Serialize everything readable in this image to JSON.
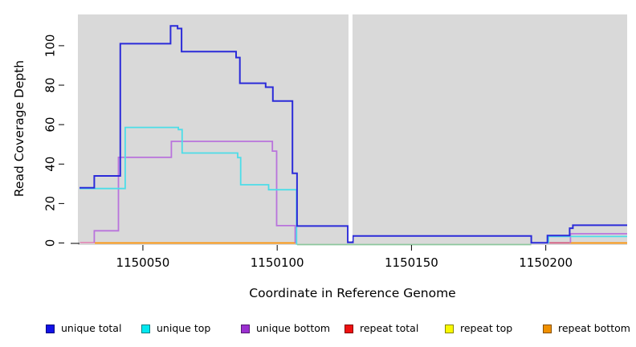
{
  "figure": {
    "bg": "#ffffff",
    "plot_bg": "#d9d9d9"
  },
  "chart_data": {
    "type": "line",
    "step": "after",
    "title": "",
    "xlabel": "Coordinate in Reference Genome",
    "ylabel": "Read Coverage Depth",
    "xlim": [
      1150025.8,
      1150230.3
    ],
    "ylim": [
      0,
      116
    ],
    "xticks": [
      1150050,
      1150100,
      1150150,
      1150200
    ],
    "yticks": [
      0,
      20,
      40,
      60,
      80,
      100
    ],
    "grid": false,
    "legend_position": "bottom",
    "masked_region": {
      "x0": 1150126.55,
      "x1": 1150128.05,
      "color": "#ffffff"
    },
    "series": [
      {
        "name": "unique bottom",
        "color": "#b973dc",
        "width": 1.8,
        "paths": [
          [
            [
              1150031.9,
              0.2
            ],
            [
              1150031.9,
              6.2
            ],
            [
              1150040.9,
              43.4
            ],
            [
              1150060.6,
              51.5
            ],
            [
              1150098.2,
              46.6
            ],
            [
              1150099.8,
              8.8
            ],
            [
              1150106.7,
              0
            ]
          ],
          [
            [
              1150209.2,
              0
            ],
            [
              1150209.2,
              4.7
            ],
            [
              1150230.3,
              4.7
            ]
          ]
        ]
      },
      {
        "name": "unique top",
        "color": "#4cdde8",
        "width": 1.8,
        "paths": [
          [
            [
              1150026.4,
              27.6
            ],
            [
              1150043.4,
              58.6
            ],
            [
              1150063.2,
              57.5
            ],
            [
              1150064.6,
              45.6
            ],
            [
              1150085.3,
              43.3
            ],
            [
              1150086.4,
              29.5
            ],
            [
              1150096.8,
              27
            ],
            [
              1150107.2,
              27
            ],
            [
              1150107.2,
              -0.8
            ]
          ],
          [
            [
              1150200.9,
              0
            ],
            [
              1150201.0,
              3.3
            ],
            [
              1150230.3,
              3.3
            ]
          ]
        ]
      },
      {
        "name": "unique total",
        "color": "#2b2bd9",
        "width": 2,
        "paths": [
          [
            [
              1150026.4,
              28
            ],
            [
              1150031.9,
              34
            ],
            [
              1150041.6,
              101
            ],
            [
              1150060.3,
              110
            ],
            [
              1150062.9,
              108.7
            ],
            [
              1150064.4,
              97
            ],
            [
              1150084.7,
              94
            ],
            [
              1150086.1,
              81
            ],
            [
              1150095.7,
              79
            ],
            [
              1150098.4,
              72
            ],
            [
              1150105.7,
              35.3
            ],
            [
              1150107.4,
              8.6
            ],
            [
              1150126.3,
              0.3
            ],
            [
              1150128.2,
              3.6
            ],
            [
              1150194.6,
              0.1
            ],
            [
              1150200.6,
              3.8
            ],
            [
              1150208.9,
              7.5
            ],
            [
              1150210.1,
              9
            ],
            [
              1150230.3,
              9
            ]
          ]
        ]
      }
    ],
    "zero_segments": [
      {
        "name": "baseline-pink",
        "color": "#e28cb8",
        "x0": 1150026.6,
        "x1": 1150032.1,
        "v": 0.2
      },
      {
        "name": "baseline-orange-left",
        "color": "#ff9100",
        "x0": 1150032.1,
        "x1": 1150106.9,
        "v": 0
      },
      {
        "name": "baseline-green",
        "color": "#8cc79c",
        "x0": 1150107.4,
        "x1": 1150194.6,
        "v": -0.8
      },
      {
        "name": "baseline-crimson",
        "color": "#d4557c",
        "x0": 1150200.7,
        "x1": 1150208.9,
        "v": 0.05
      },
      {
        "name": "baseline-orange-right",
        "color": "#ff9100",
        "x0": 1150208.9,
        "x1": 1150230.3,
        "v": 0
      }
    ],
    "legend": [
      {
        "label": "unique total",
        "color": "#1212e6"
      },
      {
        "label": "unique top",
        "color": "#00e8f0"
      },
      {
        "label": "unique bottom",
        "color": "#9b30d0"
      },
      {
        "label": "repeat total",
        "color": "#ee1111"
      },
      {
        "label": "repeat top",
        "color": "#f8f800"
      },
      {
        "label": "repeat bottom",
        "color": "#f09000"
      }
    ]
  }
}
